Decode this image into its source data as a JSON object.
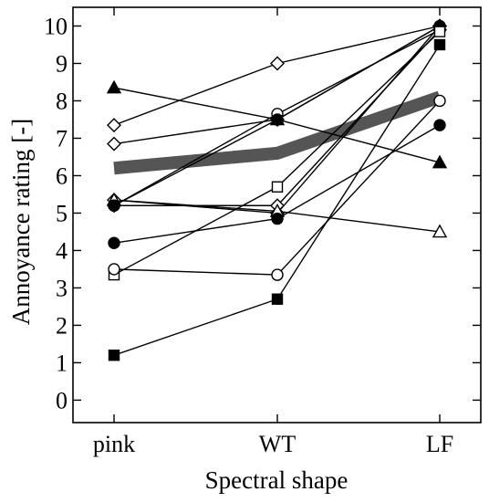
{
  "chart_data": {
    "type": "line",
    "title": "",
    "xlabel": "Spectral shape",
    "ylabel": "Annoyance rating [-]",
    "categories": [
      "pink",
      "WT",
      "LF"
    ],
    "ylim": [
      -0.6,
      10.5
    ],
    "yticks": [
      "0",
      "1",
      "2",
      "3",
      "4",
      "5",
      "6",
      "7",
      "8",
      "9",
      "10"
    ],
    "grid": false,
    "legend": "none",
    "mean_series": {
      "values": [
        6.2,
        6.6,
        8.1
      ],
      "color": "#555555"
    },
    "series": [
      {
        "marker": "filled-triangle",
        "values": [
          8.35,
          7.5,
          6.35
        ]
      },
      {
        "marker": "open-diamond",
        "values": [
          7.35,
          9.0,
          10.0
        ]
      },
      {
        "marker": "open-diamond",
        "values": [
          6.85,
          7.5,
          10.0
        ]
      },
      {
        "marker": "open-diamond",
        "values": [
          5.35,
          5.0,
          10.0
        ]
      },
      {
        "marker": "open-diamond",
        "values": [
          5.2,
          5.2,
          9.9
        ]
      },
      {
        "marker": "open-triangle",
        "values": [
          5.35,
          5.05,
          4.5
        ]
      },
      {
        "marker": "open-circle",
        "values": [
          5.2,
          7.65,
          9.9
        ]
      },
      {
        "marker": "filled-circle",
        "values": [
          5.2,
          7.5,
          10.0
        ]
      },
      {
        "marker": "filled-circle",
        "values": [
          4.2,
          4.85,
          7.35
        ]
      },
      {
        "marker": "open-square",
        "values": [
          3.35,
          5.7,
          9.85
        ]
      },
      {
        "marker": "open-circle",
        "values": [
          3.5,
          3.35,
          8.0
        ]
      },
      {
        "marker": "filled-square",
        "values": [
          1.2,
          2.7,
          9.5
        ]
      }
    ]
  }
}
